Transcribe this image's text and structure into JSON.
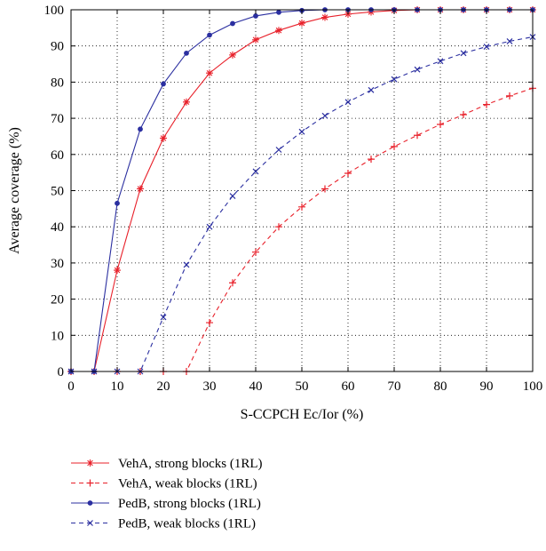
{
  "chart_data": {
    "type": "line",
    "xlabel": "S-CCPCH Ec/Ior (%)",
    "ylabel": "Average coverage (%)",
    "xlim": [
      0,
      100
    ],
    "ylim": [
      0,
      100
    ],
    "x_ticks": [
      0,
      10,
      20,
      30,
      40,
      50,
      60,
      70,
      80,
      90,
      100
    ],
    "y_ticks": [
      0,
      10,
      20,
      30,
      40,
      50,
      60,
      70,
      80,
      90,
      100
    ],
    "grid": true,
    "grid_style": "dotted",
    "legend_position": "below-plot",
    "x": [
      0,
      5,
      10,
      15,
      20,
      25,
      30,
      35,
      40,
      45,
      50,
      55,
      60,
      65,
      70,
      75,
      80,
      85,
      90,
      95,
      100
    ],
    "series": [
      {
        "name": "VehA, strong blocks (1RL)",
        "color": "#e8202a",
        "line": "solid",
        "marker": "star",
        "values": [
          0,
          0,
          28,
          50.5,
          64.5,
          74.5,
          82.5,
          87.5,
          91.7,
          94.3,
          96.3,
          97.9,
          98.8,
          99.4,
          99.8,
          100,
          100,
          100,
          100,
          100,
          100
        ]
      },
      {
        "name": "VehA, weak blocks (1RL)",
        "color": "#e8202a",
        "line": "dashed",
        "marker": "plus",
        "values": [
          0,
          0,
          0,
          0,
          0,
          0,
          13.5,
          24.5,
          33,
          40,
          45.5,
          50.5,
          54.8,
          58.7,
          62.2,
          65.3,
          68.3,
          71,
          73.8,
          76.2,
          78.3
        ]
      },
      {
        "name": "PedB, strong blocks (1RL)",
        "color": "#2b2fa0",
        "line": "solid",
        "marker": "dot",
        "values": [
          0,
          0,
          46.5,
          67,
          79.5,
          88,
          93,
          96.2,
          98.3,
          99.3,
          99.8,
          100,
          100,
          100,
          100,
          100,
          100,
          100,
          100,
          100,
          100
        ]
      },
      {
        "name": "PedB, weak blocks (1RL)",
        "color": "#2b2fa0",
        "line": "dashed",
        "marker": "x",
        "values": [
          0,
          0,
          0,
          0,
          15,
          29.5,
          40,
          48.5,
          55.3,
          61.3,
          66.3,
          70.7,
          74.5,
          77.8,
          80.8,
          83.5,
          85.8,
          88,
          89.8,
          91.3,
          92.5
        ]
      }
    ]
  }
}
